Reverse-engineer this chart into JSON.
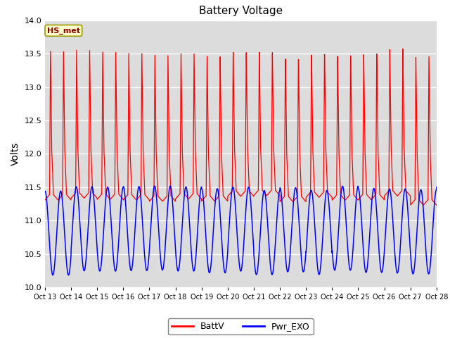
{
  "title": "Battery Voltage",
  "ylabel": "Volts",
  "ylim": [
    10.0,
    14.0
  ],
  "yticks": [
    10.0,
    10.5,
    11.0,
    11.5,
    12.0,
    12.5,
    13.0,
    13.5,
    14.0
  ],
  "xtick_labels": [
    "Oct 13",
    "Oct 14",
    "Oct 15",
    "Oct 16",
    "Oct 17",
    "Oct 18",
    "Oct 19",
    "Oct 20",
    "Oct 21",
    "Oct 22",
    "Oct 23",
    "Oct 24",
    "Oct 25",
    "Oct 26",
    "Oct 27",
    "Oct 28"
  ],
  "legend_labels": [
    "BattV",
    "Pwr_EXO"
  ],
  "legend_colors": [
    "red",
    "blue"
  ],
  "batt_color": "red",
  "pwr_color": "blue",
  "plot_bg": "#dcdcdc",
  "annotation": "HS_met",
  "annotation_color": "#8B0000",
  "annotation_bg": "#ffffcc",
  "annotation_border": "#999900"
}
